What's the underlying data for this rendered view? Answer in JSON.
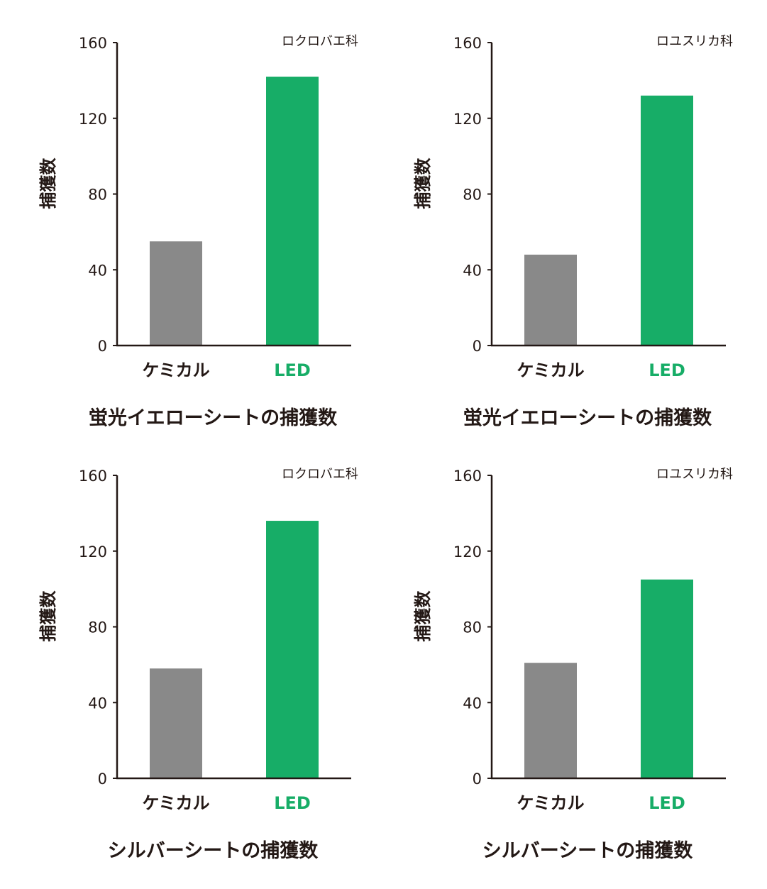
{
  "colors": {
    "axis": "#231815",
    "text": "#231815",
    "chemical": "#898989",
    "led": "#17AD67"
  },
  "chart_data": [
    {
      "type": "bar",
      "title": "蛍光イエローシートの捕獲数",
      "legend": "ロクロバエ科",
      "ylabel": "捕獲数",
      "ylim": [
        0,
        160
      ],
      "yticks": [
        0,
        40,
        80,
        120,
        160
      ],
      "categories": [
        "ケミカル",
        "LED"
      ],
      "values": [
        55,
        142
      ]
    },
    {
      "type": "bar",
      "title": "蛍光イエローシートの捕獲数",
      "legend": "ロユスリカ科",
      "ylabel": "捕獲数",
      "ylim": [
        0,
        160
      ],
      "yticks": [
        0,
        40,
        80,
        120,
        160
      ],
      "categories": [
        "ケミカル",
        "LED"
      ],
      "values": [
        48,
        132
      ]
    },
    {
      "type": "bar",
      "title": "シルバーシートの捕獲数",
      "legend": "ロクロバエ科",
      "ylabel": "捕獲数",
      "ylim": [
        0,
        160
      ],
      "yticks": [
        0,
        40,
        80,
        120,
        160
      ],
      "categories": [
        "ケミカル",
        "LED"
      ],
      "values": [
        58,
        136
      ]
    },
    {
      "type": "bar",
      "title": "シルバーシートの捕獲数",
      "legend": "ロユスリカ科",
      "ylabel": "捕獲数",
      "ylim": [
        0,
        160
      ],
      "yticks": [
        0,
        40,
        80,
        120,
        160
      ],
      "categories": [
        "ケミカル",
        "LED"
      ],
      "values": [
        61,
        105
      ]
    }
  ]
}
